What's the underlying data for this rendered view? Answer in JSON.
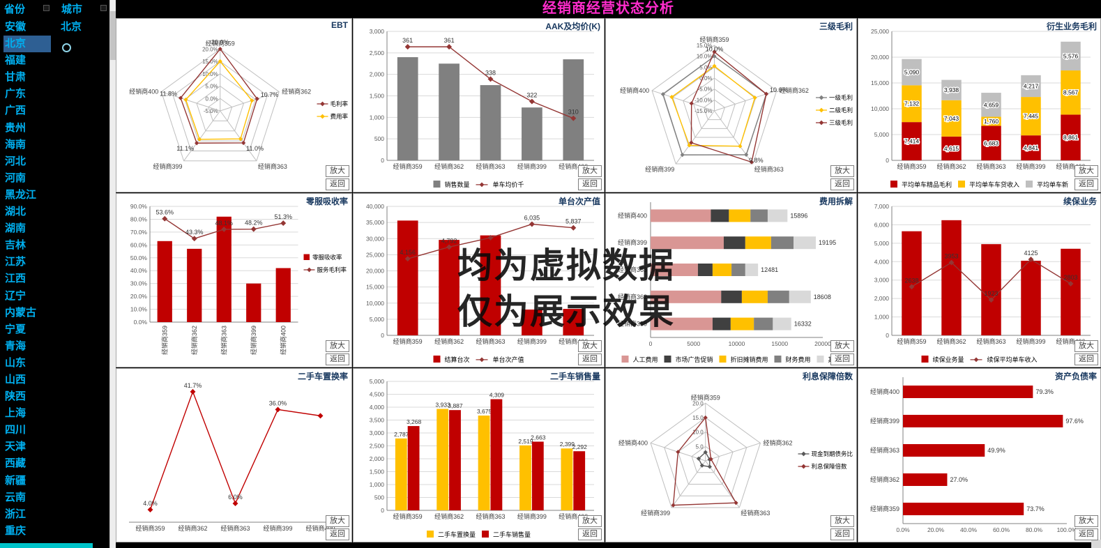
{
  "header": {
    "title": "经销商经营状态分析"
  },
  "sidebar": {
    "province_header": "省份",
    "city_header": "城市",
    "selected_province": "北京",
    "provinces": [
      "安徽",
      "北京",
      "福建",
      "甘肃",
      "广东",
      "广西",
      "贵州",
      "海南",
      "河北",
      "河南",
      "黑龙江",
      "湖北",
      "湖南",
      "吉林",
      "江苏",
      "江西",
      "辽宁",
      "内蒙古",
      "宁夏",
      "青海",
      "山东",
      "山西",
      "陕西",
      "上海",
      "四川",
      "天津",
      "西藏",
      "新疆",
      "云南",
      "浙江",
      "重庆"
    ],
    "cities": [
      "北京"
    ]
  },
  "watermark": {
    "line1": "均为虚拟数据",
    "line2": "仅为展示效果"
  },
  "panel_buttons": {
    "zoom": "放大",
    "back": "返回"
  },
  "colors": {
    "red": "#c00000",
    "line_red": "#943634",
    "yellow": "#ffc000",
    "gray": "#808080",
    "light_gray": "#bfbfbf",
    "rose": "#d99694",
    "title_accent": "#ff2ccc",
    "sidebar_text": "#00b0f0"
  },
  "chart_data": [
    {
      "title": "EBT",
      "type": "radar",
      "min": -5,
      "max": 20,
      "axes": [
        "经销商359",
        "经销商362",
        "经销商363",
        "经销商399",
        "经销商400"
      ],
      "rings": [
        {
          "value": 20,
          "label": "20.0%"
        },
        {
          "value": 15,
          "label": "15.0%"
        },
        {
          "value": 10,
          "label": "10.0%"
        },
        {
          "value": 5,
          "label": "5.0%"
        },
        {
          "value": 0,
          "label": "0.0%"
        },
        {
          "value": -5,
          "label": "-5.0%"
        }
      ],
      "series": [
        {
          "name": "毛利率",
          "color": "#943634",
          "values": [
            20,
            10.7,
            11,
            11.1,
            11.8
          ]
        },
        {
          "name": "费用率",
          "color": "#ffc000",
          "values": [
            15,
            8.5,
            9,
            9.2,
            9.6
          ]
        }
      ],
      "point_labels": [
        "20.0%",
        "10.7%",
        "11.0%",
        "11.1%",
        "11.8%"
      ],
      "legend": "right"
    },
    {
      "title": "AAK及均价(K)",
      "type": "bars",
      "categories": [
        "经销商359",
        "经销商362",
        "经销商363",
        "经销商399",
        "经销商400"
      ],
      "y": {
        "min": 0,
        "max": 3000,
        "step": 500,
        "fmt": "num"
      },
      "series": [
        {
          "name": "销售数量",
          "color": "#808080",
          "values": [
            2400,
            2250,
            1750,
            1230,
            2350
          ]
        }
      ],
      "line": {
        "name": "单车均价千",
        "color": "#943634",
        "values": [
          361,
          361,
          338,
          322,
          310
        ],
        "labels": [
          "361",
          "361",
          "338",
          "322",
          "310"
        ],
        "scale": {
          "min": 280,
          "max": 372
        }
      },
      "legend": "bottom"
    },
    {
      "title": "三级毛利",
      "type": "radar",
      "min": -15,
      "max": 15,
      "axes": [
        "经销商359",
        "经销商362",
        "经销商363",
        "经销商399",
        "经销商400"
      ],
      "rings": [
        {
          "value": 15,
          "label": "15.0%"
        },
        {
          "value": 10,
          "label": "10.0%"
        },
        {
          "value": 5,
          "label": "5.0%"
        },
        {
          "value": 0,
          "label": "0.0%"
        },
        {
          "value": -5,
          "label": "-5.0%"
        },
        {
          "value": -10,
          "label": "-10.0%"
        },
        {
          "value": -15,
          "label": "-15.0%"
        }
      ],
      "series": [
        {
          "name": "一级毛利",
          "color": "#808080",
          "values": [
            10,
            10,
            9.8,
            9.9,
            9.7
          ]
        },
        {
          "name": "二级毛利",
          "color": "#ffc000",
          "values": [
            5.5,
            4.5,
            5,
            4.5,
            5.5
          ]
        },
        {
          "name": "三级毛利",
          "color": "#943634",
          "values": [
            12,
            10,
            14,
            3,
            -4
          ]
        }
      ],
      "point_labels": [
        "10.0%",
        "10.0%",
        "9.8%",
        "",
        ""
      ],
      "legend": "right"
    },
    {
      "title": "衍生业务毛利",
      "type": "bars",
      "mode": "stack",
      "categories": [
        "经销商359",
        "经销商362",
        "经销商363",
        "经销商399",
        "经销商400"
      ],
      "y": {
        "min": 0,
        "max": 25000,
        "step": 5000,
        "fmt": "num"
      },
      "series": [
        {
          "name": "平均单车精品毛利",
          "color": "#c00000",
          "values": [
            7414,
            4615,
            6683,
            4841,
            8861
          ],
          "labels": [
            "7,414",
            "4,615",
            "6,683",
            "4,841",
            "8,861"
          ]
        },
        {
          "name": "平均单车车贷收入",
          "color": "#ffc000",
          "values": [
            7132,
            7043,
            1760,
            7445,
            8567
          ],
          "labels": [
            "7,132",
            "7,043",
            "1,760",
            "7,445",
            "8,567"
          ]
        },
        {
          "name": "平均单车新",
          "color": "#bfbfbf",
          "values": [
            5090,
            3938,
            4659,
            4217,
            5576
          ],
          "labels": [
            "5,090",
            "3,938",
            "4,659",
            "4,217",
            "5,576"
          ]
        }
      ],
      "legend": "bottom"
    },
    {
      "title": "零服吸收率",
      "type": "bars",
      "rotate_x": true,
      "categories": [
        "经销商359",
        "经销商362",
        "经销商363",
        "经销商399",
        "经销商400"
      ],
      "y": {
        "min": 0,
        "max": 90,
        "step": 10,
        "fmt": "pct"
      },
      "series": [
        {
          "name": "零服吸收率",
          "color": "#c00000",
          "values": [
            63,
            57,
            82,
            30,
            42
          ]
        }
      ],
      "line": {
        "name": "服务毛利率",
        "color": "#943634",
        "values": [
          53.6,
          43.3,
          48.1,
          48.2,
          51.3
        ],
        "labels": [
          "53.6%",
          "43.3%",
          "48.1%",
          "48.2%",
          "51.3%"
        ],
        "scale": {
          "min": 0,
          "max": 60
        }
      },
      "legend": "right"
    },
    {
      "title": "单台次产值",
      "type": "bars",
      "categories": [
        "经销商359",
        "经销商362",
        "经销商363",
        "经销商399",
        "经销商400"
      ],
      "y": {
        "min": 0,
        "max": 40000,
        "step": 5000,
        "fmt": "num"
      },
      "series": [
        {
          "name": "结算台次",
          "color": "#c00000",
          "values": [
            890,
            740,
            775,
            200,
            205
          ],
          "scale": {
            "min": 0,
            "max": 1000
          }
        }
      ],
      "line": {
        "name": "单台次产值",
        "color": "#943634",
        "values": [
          4156,
          4792,
          5300,
          6035,
          5837
        ],
        "labels": [
          "4,156",
          "4,792",
          "",
          "6,035",
          "5,837"
        ],
        "scale": {
          "min": 0,
          "max": 7000
        }
      },
      "legend": "bottom"
    },
    {
      "title": "费用拆解",
      "type": "hbars",
      "mode": "stack",
      "categories": [
        "经销商400",
        "经销商399",
        "经销商363",
        "经销商362",
        "经销商359"
      ],
      "x": {
        "min": 0,
        "max": 20000,
        "step": 5000,
        "fmt": "plain"
      },
      "series": [
        {
          "name": "人工费用",
          "color": "#d99694",
          "values": [
            7000,
            8500,
            5500,
            8200,
            7200
          ]
        },
        {
          "name": "市场广告促销",
          "color": "#404040",
          "values": [
            2100,
            2500,
            1700,
            2400,
            2100
          ]
        },
        {
          "name": "折旧摊销费用",
          "color": "#ffc000",
          "values": [
            2500,
            3000,
            2200,
            3000,
            2700
          ]
        },
        {
          "name": "财务费用",
          "color": "#808080",
          "values": [
            2000,
            2600,
            1600,
            2500,
            2200
          ]
        },
        {
          "name": "其他",
          "color": "#d9d9d9",
          "values": [
            2296,
            2595,
            1481,
            2508,
            2132
          ]
        }
      ],
      "totals": [
        "15896",
        "19195",
        "12481",
        "18608",
        "16332"
      ],
      "legend": "bottom"
    },
    {
      "title": "续保业务",
      "type": "bars",
      "categories": [
        "经销商359",
        "经销商362",
        "经销商363",
        "经销商399",
        "经销商400"
      ],
      "y": {
        "min": 0,
        "max": 7000,
        "step": 1000,
        "fmt": "num"
      },
      "series": [
        {
          "name": "续保业务量",
          "color": "#c00000",
          "values": [
            5650,
            6250,
            4950,
            4050,
            4700
          ]
        }
      ],
      "line": {
        "name": "续保平均单车收入",
        "color": "#943634",
        "values": [
          2638,
          3953,
          1923,
          4125,
          2803
        ],
        "labels": [
          "2638",
          "3953",
          "1923",
          "4125",
          "2803"
        ]
      },
      "legend": "bottom"
    },
    {
      "title": "二手车置换率",
      "type": "bars",
      "categories": [
        "经销商359",
        "经销商362",
        "经销商363",
        "经销商399",
        "经销商400"
      ],
      "y": {
        "min": 0,
        "max": 45,
        "step": 5,
        "fmt": "pct",
        "hide": true
      },
      "series": [],
      "line": {
        "name": "二手车置换率",
        "color": "#c00000",
        "values": [
          4,
          41.7,
          6,
          36,
          34
        ],
        "labels": [
          "4.0%",
          "41.7%",
          "6.0%",
          "36.0%",
          ""
        ]
      },
      "legend": "none"
    },
    {
      "title": "二手车销售量",
      "type": "bars",
      "mode": "group",
      "categories": [
        "经销商359",
        "经销商362",
        "经销商363",
        "经销商399",
        "经销商400"
      ],
      "y": {
        "min": 0,
        "max": 5000,
        "step": 500,
        "fmt": "num"
      },
      "series": [
        {
          "name": "二手车置换量",
          "color": "#ffc000",
          "values": [
            2787,
            3933,
            3675,
            2519,
            2399
          ],
          "labels": [
            "2,787",
            "3,933",
            "3,675",
            "2,519",
            "2,399"
          ]
        },
        {
          "name": "二手车销售量",
          "color": "#c00000",
          "values": [
            3268,
            3887,
            4309,
            2663,
            2292
          ],
          "labels": [
            "3,268",
            "3,887",
            "4,309",
            "2,663",
            "2,292"
          ]
        }
      ],
      "legend": "bottom"
    },
    {
      "title": "利息保障倍数",
      "type": "radar",
      "min": 0,
      "max": 20,
      "axes": [
        "经销商359",
        "经销商362",
        "经销商363",
        "经销商399",
        "经销商400"
      ],
      "rings": [
        {
          "value": 20,
          "label": "20.0"
        },
        {
          "value": 15,
          "label": "15.0"
        },
        {
          "value": 10,
          "label": "10.0"
        },
        {
          "value": 5,
          "label": "5.0"
        },
        {
          "value": 0,
          "label": ""
        }
      ],
      "series": [
        {
          "name": "现金到期债务比",
          "color": "#595959",
          "values": [
            3,
            1.5,
            2.5,
            2,
            2.5
          ]
        },
        {
          "name": "利息保障倍数",
          "color": "#943634",
          "values": [
            15,
            2,
            18,
            19,
            10
          ]
        }
      ],
      "legend": "right"
    },
    {
      "title": "资产负债率",
      "type": "hbars",
      "mode": "plain",
      "categories": [
        "经销商400",
        "经销商399",
        "经销商363",
        "经销商362",
        "经销商359"
      ],
      "x": {
        "min": 0,
        "max": 100,
        "step": 20,
        "fmt": "pct"
      },
      "series": [
        {
          "name": "资产负债率",
          "color": "#c00000",
          "values": [
            79.3,
            97.6,
            49.9,
            27,
            73.7
          ],
          "labels": [
            "79.3%",
            "97.6%",
            "49.9%",
            "27.0%",
            "73.7%"
          ]
        }
      ],
      "legend": "none"
    }
  ]
}
